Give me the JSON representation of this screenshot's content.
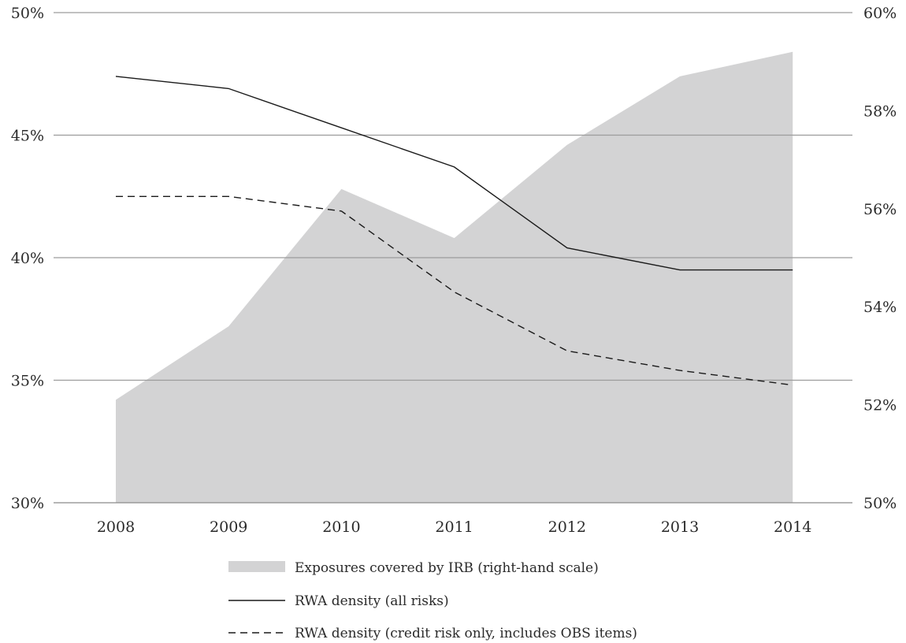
{
  "chart_data": {
    "type": "area",
    "categories": [
      "2008",
      "2009",
      "2010",
      "2011",
      "2012",
      "2013",
      "2014"
    ],
    "left_axis": {
      "ticks": [
        "50%",
        "45%",
        "40%",
        "35%",
        "30%"
      ],
      "tick_values": [
        50,
        45,
        40,
        35,
        30
      ],
      "ylim": [
        30,
        50
      ]
    },
    "right_axis": {
      "ticks": [
        "60%",
        "58%",
        "56%",
        "54%",
        "52%",
        "50%"
      ],
      "tick_values": [
        60,
        58,
        56,
        54,
        52,
        50
      ],
      "ylim": [
        50,
        60
      ]
    },
    "grid": "horizontal",
    "legend_position": "bottom",
    "series": [
      {
        "name": "Exposures covered by IRB (right-hand scale)",
        "type": "area",
        "axis": "right",
        "color": "#d3d3d4",
        "values": [
          52.1,
          53.6,
          56.4,
          55.4,
          57.3,
          58.7,
          59.2
        ]
      },
      {
        "name": "RWA density (all risks)",
        "type": "line",
        "axis": "left",
        "style": "solid",
        "color": "#1a1a1a",
        "values": [
          47.4,
          46.9,
          45.3,
          43.7,
          40.4,
          39.5,
          39.5
        ]
      },
      {
        "name": "RWA density (credit risk only, includes OBS items)",
        "type": "line",
        "axis": "left",
        "style": "dashed",
        "color": "#1a1a1a",
        "values": [
          42.5,
          42.5,
          41.9,
          38.6,
          36.2,
          35.4,
          34.8
        ]
      }
    ]
  }
}
